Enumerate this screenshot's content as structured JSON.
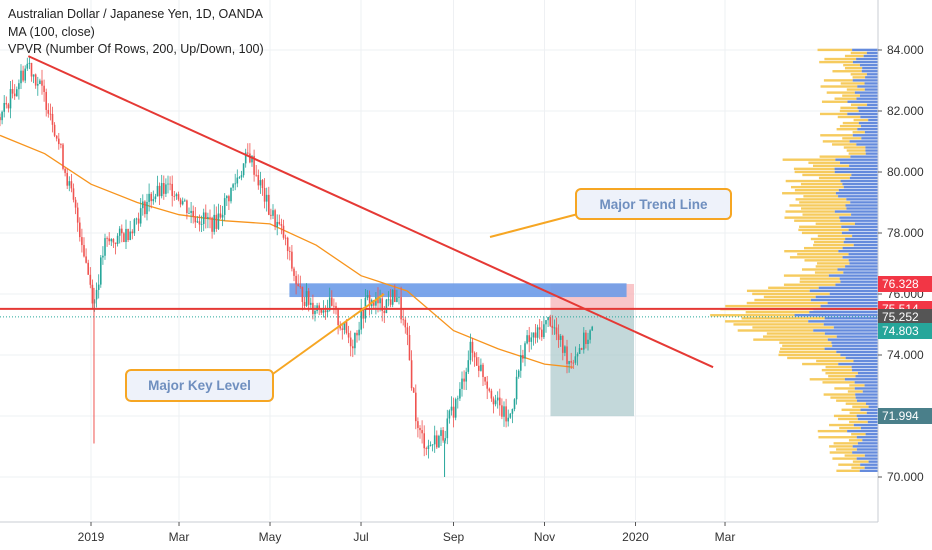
{
  "legend": {
    "symbol": "Australian Dollar / Japanese Yen, 1D, OANDA",
    "ma": "MA (100, close)",
    "vpvr": "VPVR (Number Of Rows, 200, Up/Down, 100)"
  },
  "annotations": {
    "trend_line_label": "Major Trend Line",
    "key_level_label": "Major Key Level"
  },
  "price_tags": [
    {
      "value": "76.328",
      "color": "#f23645"
    },
    {
      "value": "75.514",
      "color": "#f23645"
    },
    {
      "value": "75.252",
      "color": "#555555"
    },
    {
      "value": "74.803",
      "color": "#26a69a"
    },
    {
      "value": "71.994",
      "color": "#4a7f8a"
    }
  ],
  "colors": {
    "up": "#26a69a",
    "down": "#ef5350",
    "ma": "#f7941d",
    "trend": "#e53935",
    "key_level": "#e53935",
    "resistance_zone": "#6d9be8",
    "vp_up": "#f5c242",
    "vp_down": "#4a77d6"
  },
  "chart_data": {
    "type": "candlestick",
    "y_ticks": [
      "70.000",
      "72.000",
      "74.000",
      "76.000",
      "78.000",
      "80.000",
      "82.000",
      "84.000"
    ],
    "x_ticks": [
      "2019",
      "Mar",
      "May",
      "Jul",
      "Sep",
      "Nov",
      "2020",
      "Mar"
    ],
    "ylim": [
      69.0,
      85.5
    ],
    "key_level": 75.514,
    "resistance_zone": [
      75.9,
      76.35
    ],
    "risk_box": [
      75.514,
      76.328
    ],
    "reward_box": [
      71.994,
      75.514
    ],
    "trend_line": [
      {
        "x": "2018-11-20",
        "y": 83.8
      },
      {
        "x": "2020-02-22",
        "y": 73.6
      }
    ],
    "close_last": 74.803,
    "trend_path": [
      [
        "2018-11-01",
        81.8
      ],
      [
        "2018-11-20",
        83.6
      ],
      [
        "2018-12-05",
        82.0
      ],
      [
        "2018-12-15",
        80.0
      ],
      [
        "2018-12-25",
        78.0
      ],
      [
        "2019-01-03",
        75.7
      ],
      [
        "2019-01-10",
        77.6
      ],
      [
        "2019-01-25",
        78.0
      ],
      [
        "2019-02-10",
        79.2
      ],
      [
        "2019-02-25",
        79.5
      ],
      [
        "2019-03-10",
        78.6
      ],
      [
        "2019-03-25",
        78.3
      ],
      [
        "2019-04-05",
        79.4
      ],
      [
        "2019-04-17",
        80.6
      ],
      [
        "2019-04-30",
        78.8
      ],
      [
        "2019-05-10",
        77.9
      ],
      [
        "2019-05-20",
        76.1
      ],
      [
        "2019-05-30",
        75.6
      ],
      [
        "2019-06-10",
        75.6
      ],
      [
        "2019-06-25",
        74.4
      ],
      [
        "2019-07-05",
        75.8
      ],
      [
        "2019-07-15",
        75.6
      ],
      [
        "2019-07-25",
        76.0
      ],
      [
        "2019-08-01",
        74.4
      ],
      [
        "2019-08-08",
        71.5
      ],
      [
        "2019-08-15",
        71.0
      ],
      [
        "2019-08-25",
        71.4
      ],
      [
        "2019-09-05",
        72.7
      ],
      [
        "2019-09-12",
        74.2
      ],
      [
        "2019-09-20",
        73.5
      ],
      [
        "2019-10-01",
        72.3
      ],
      [
        "2019-10-08",
        71.8
      ],
      [
        "2019-10-18",
        74.3
      ],
      [
        "2019-10-28",
        74.7
      ],
      [
        "2019-11-05",
        75.2
      ],
      [
        "2019-11-10",
        74.5
      ],
      [
        "2019-11-18",
        73.8
      ],
      [
        "2019-11-25",
        74.3
      ],
      [
        "2019-12-03",
        74.8
      ]
    ],
    "ma_path": [
      [
        "2018-11-01",
        81.2
      ],
      [
        "2018-12-01",
        80.6
      ],
      [
        "2019-01-01",
        79.6
      ],
      [
        "2019-02-01",
        79.0
      ],
      [
        "2019-03-01",
        78.6
      ],
      [
        "2019-04-01",
        78.4
      ],
      [
        "2019-05-01",
        78.3
      ],
      [
        "2019-06-01",
        77.6
      ],
      [
        "2019-07-01",
        76.6
      ],
      [
        "2019-08-01",
        76.1
      ],
      [
        "2019-09-01",
        74.8
      ],
      [
        "2019-10-01",
        74.2
      ],
      [
        "2019-11-01",
        73.7
      ],
      [
        "2019-11-20",
        73.6
      ]
    ]
  }
}
